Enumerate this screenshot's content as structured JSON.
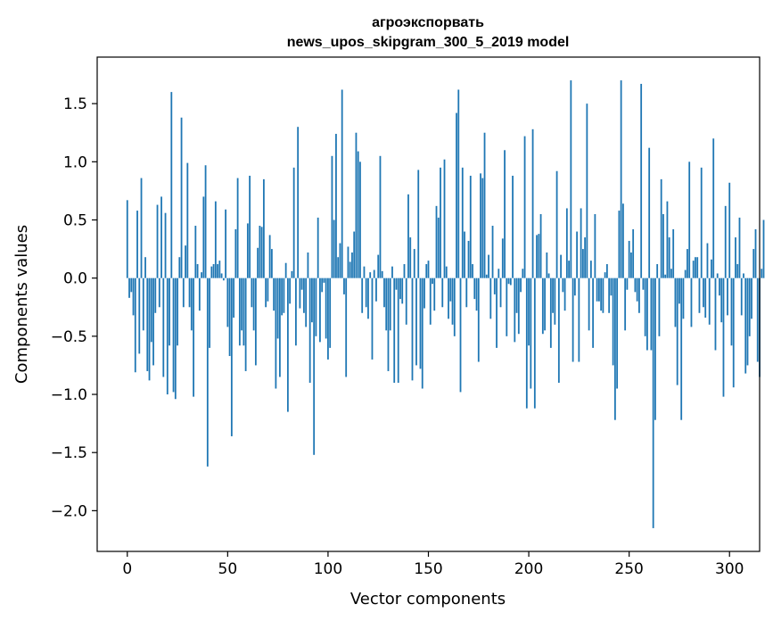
{
  "chart_data": {
    "type": "bar",
    "title_line1": "агроэкспорвать",
    "title_line2": "news_upos_skipgram_300_5_2019 model",
    "xlabel": "Vector components",
    "ylabel": "Components values",
    "xlim": [
      -15,
      315
    ],
    "ylim": [
      -2.35,
      1.9
    ],
    "xticks": [
      0,
      50,
      100,
      150,
      200,
      250,
      300
    ],
    "xtick_labels": [
      "0",
      "50",
      "100",
      "150",
      "200",
      "250",
      "300"
    ],
    "yticks": [
      -2.0,
      -1.5,
      -1.0,
      -0.5,
      0.0,
      0.5,
      1.0,
      1.5
    ],
    "ytick_labels": [
      "−2.0",
      "−1.5",
      "−1.0",
      "−0.5",
      "0.0",
      "0.5",
      "1.0",
      "1.5"
    ],
    "bar_color": "#1f77b4",
    "values": [
      0.67,
      -0.17,
      -0.12,
      -0.32,
      -0.81,
      0.58,
      -0.65,
      0.86,
      -0.45,
      0.18,
      -0.8,
      -0.88,
      -0.55,
      -0.75,
      -0.3,
      0.63,
      -0.25,
      0.7,
      -0.85,
      0.56,
      -1.0,
      -0.58,
      1.6,
      -0.98,
      -1.04,
      -0.58,
      0.18,
      1.38,
      -0.25,
      0.28,
      0.99,
      -0.25,
      -0.45,
      -1.02,
      0.45,
      0.12,
      -0.28,
      0.05,
      0.7,
      0.97,
      -1.62,
      -0.6,
      0.1,
      0.12,
      0.66,
      0.12,
      0.15,
      0.04,
      -0.02,
      0.59,
      -0.42,
      -0.67,
      -1.36,
      -0.34,
      0.42,
      0.86,
      -0.58,
      -0.45,
      -0.58,
      -0.8,
      0.47,
      0.88,
      -0.25,
      -0.45,
      -0.75,
      0.26,
      0.45,
      0.44,
      0.85,
      -0.25,
      -0.2,
      0.37,
      0.25,
      -0.28,
      -0.95,
      -0.52,
      -0.85,
      -0.32,
      -0.3,
      0.13,
      -1.15,
      -0.22,
      0.06,
      0.95,
      -0.58,
      1.3,
      -0.26,
      -0.1,
      -0.3,
      -0.42,
      0.22,
      -0.9,
      -0.38,
      -1.52,
      -0.5,
      0.52,
      -0.55,
      -0.12,
      -0.04,
      -0.52,
      -0.7,
      -0.6,
      1.05,
      0.5,
      1.24,
      0.18,
      0.3,
      1.62,
      -0.14,
      -0.85,
      0.27,
      0.14,
      0.22,
      0.4,
      1.25,
      1.09,
      1.0,
      -0.3,
      0.1,
      -0.25,
      -0.35,
      0.05,
      -0.7,
      0.07,
      -0.2,
      0.2,
      1.05,
      0.06,
      -0.25,
      -0.45,
      -0.8,
      -0.45,
      0.1,
      -0.9,
      -0.1,
      -0.9,
      -0.18,
      -0.22,
      0.12,
      -0.4,
      0.72,
      0.35,
      -0.88,
      0.25,
      -0.75,
      0.93,
      -0.78,
      -0.95,
      -0.26,
      0.12,
      0.15,
      -0.4,
      -0.05,
      -0.28,
      0.62,
      0.52,
      0.95,
      -0.25,
      1.02,
      0.1,
      -0.35,
      -0.2,
      -0.4,
      -0.5,
      1.42,
      1.62,
      -0.98,
      0.95,
      0.4,
      -0.25,
      0.32,
      0.88,
      0.12,
      -0.18,
      -0.28,
      -0.72,
      0.9,
      0.86,
      1.25,
      0.03,
      0.2,
      -0.35,
      0.45,
      -0.14,
      -0.6,
      0.08,
      -0.25,
      0.34,
      1.1,
      -0.5,
      -0.05,
      -0.06,
      0.88,
      -0.55,
      -0.3,
      -0.48,
      -0.12,
      0.08,
      1.22,
      -1.12,
      -0.58,
      -0.95,
      1.28,
      -1.12,
      0.37,
      0.38,
      0.55,
      -0.48,
      -0.45,
      0.22,
      0.04,
      -0.6,
      -0.3,
      -0.4,
      0.92,
      -0.9,
      0.2,
      -0.12,
      -0.28,
      0.6,
      0.15,
      1.7,
      -0.72,
      -0.15,
      0.4,
      -0.72,
      0.6,
      0.25,
      0.35,
      1.5,
      -0.45,
      0.15,
      -0.6,
      0.55,
      -0.2,
      -0.2,
      -0.28,
      -0.3,
      0.05,
      0.12,
      -0.3,
      -0.15,
      -0.75,
      -1.22,
      -0.95,
      0.58,
      1.7,
      0.64,
      -0.45,
      -0.1,
      0.32,
      0.22,
      0.42,
      -0.12,
      -0.2,
      -0.3,
      1.67,
      -0.1,
      -0.5,
      -0.62,
      1.12,
      -0.62,
      -2.15,
      -1.22,
      0.12,
      -0.5,
      0.85,
      0.55,
      0.03,
      0.66,
      0.35,
      0.08,
      0.42,
      -0.42,
      -0.92,
      -0.22,
      -1.22,
      -0.35,
      0.07,
      0.25,
      1.0,
      -0.42,
      0.15,
      0.18,
      0.18,
      -0.3,
      0.95,
      -0.25,
      -0.34,
      0.3,
      -0.4,
      0.16,
      1.2,
      -0.62,
      0.04,
      -0.15,
      -0.38,
      -1.02,
      0.62,
      -0.32,
      0.82,
      -0.58,
      -0.94,
      0.35,
      0.12,
      0.52,
      -0.32,
      0.04,
      -0.82,
      -0.75,
      -0.5,
      -0.35,
      0.25,
      0.42,
      -0.72,
      -0.85,
      0.08,
      0.5
    ]
  }
}
